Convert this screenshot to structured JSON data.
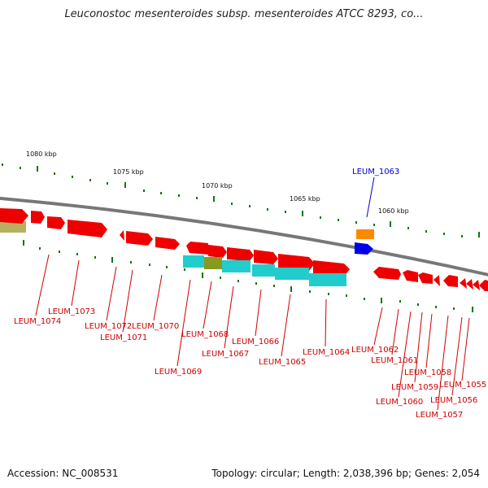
{
  "title": "Leuconostoc mesenteroides subsp. mesenteroides ATCC 8293, co...",
  "footer": {
    "accession": "Accession: NC_008531",
    "topology": "Topology: circular; Length: 2,038,396 bp; Genes: 2,054"
  },
  "scale_labels": [
    "1080 kbp",
    "1075 kbp",
    "1070 kbp",
    "1065 kbp",
    "1060 kbp"
  ],
  "gene_labels": [
    "LEUM_1074",
    "LEUM_1073",
    "LEUM_1072",
    "LEUM_1071",
    "LEUM_1070",
    "LEUM_1069",
    "LEUM_1068",
    "LEUM_1067",
    "LEUM_1066",
    "LEUM_1065",
    "LEUM_1064",
    "LEUM_1063",
    "LEUM_1062",
    "LEUM_1061",
    "LEUM_1060",
    "LEUM_1059",
    "LEUM_1058",
    "LEUM_1057",
    "LEUM_1056",
    "LEUM_1055"
  ],
  "colors": {
    "forward_gene": "#ee0000",
    "cyan_feature": "#22cccc",
    "olive_feature": "#889922",
    "orange_feature": "#ff8800",
    "blue_feature": "#0000ee",
    "backbone": "#888888"
  }
}
